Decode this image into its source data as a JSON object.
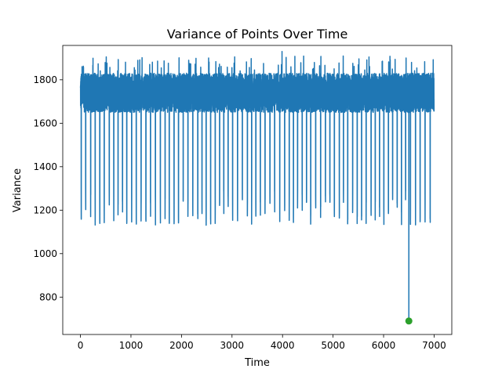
{
  "chart_data": {
    "type": "line",
    "title": "Variance of Points Over Time",
    "xlabel": "Time",
    "ylabel": "Variance",
    "xlim": [
      -350,
      7350
    ],
    "ylim": [
      628,
      1958
    ],
    "xticks": [
      0,
      1000,
      2000,
      3000,
      4000,
      5000,
      6000,
      7000
    ],
    "yticks": [
      800,
      1000,
      1200,
      1400,
      1600,
      1800
    ],
    "grid": false,
    "legend": "none",
    "series": [
      {
        "color": "#1f77b4",
        "n_points": 7000,
        "baseline_low": 1650,
        "baseline_high": 1830,
        "spike_max": 1930,
        "spike_max_x": 3990,
        "dip_low_range": [
          1130,
          1310
        ],
        "dip_spacing": 92,
        "minimum": {
          "x": 6500,
          "y": 690
        }
      }
    ],
    "markers": [
      {
        "x": 6500,
        "y": 690,
        "color": "#2ca02c"
      }
    ]
  }
}
